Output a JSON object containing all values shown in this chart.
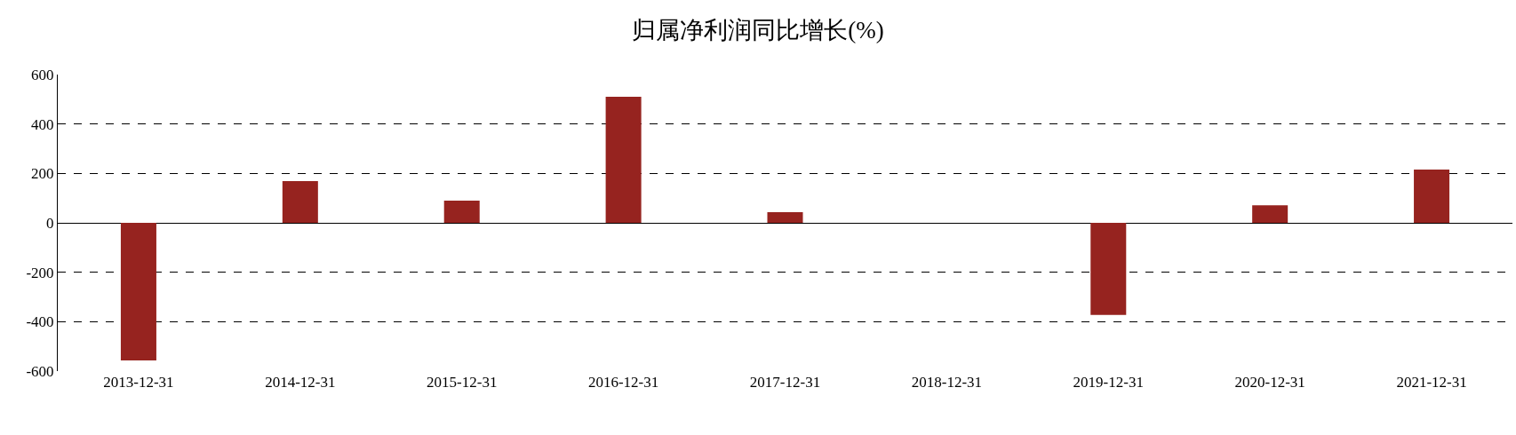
{
  "chart_data": {
    "type": "bar",
    "title": "归属净利润同比增长(%)",
    "categories": [
      "2013-12-31",
      "2014-12-31",
      "2015-12-31",
      "2016-12-31",
      "2017-12-31",
      "2018-12-31",
      "2019-12-31",
      "2020-12-31",
      "2021-12-31"
    ],
    "values": [
      -557,
      169,
      90,
      510,
      43,
      0,
      -373,
      71,
      216
    ],
    "color": "#96231f",
    "ylim": [
      -600,
      600
    ],
    "yticks": [
      -600,
      -400,
      -200,
      0,
      200,
      400,
      600
    ],
    "grid": "y"
  }
}
